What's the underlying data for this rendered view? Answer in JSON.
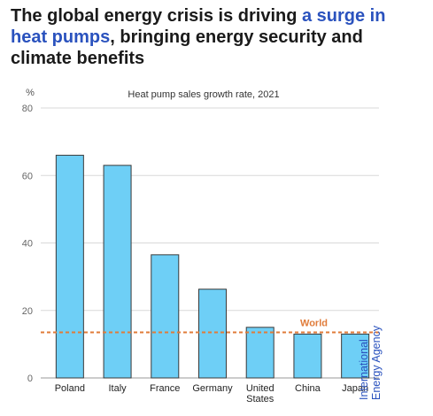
{
  "headline": {
    "part1": "The global energy crisis is driving ",
    "highlight": "a surge in heat pumps",
    "part2": ", bringing energy security and climate benefits"
  },
  "logo": {
    "line1": "International",
    "line2": "Energy Agency",
    "color": "#2a52be"
  },
  "chart_data": {
    "type": "bar",
    "title": "Heat pump sales growth rate, 2021",
    "ylabel": "%",
    "ylim": [
      0,
      80
    ],
    "yticks": [
      0,
      20,
      40,
      60,
      80
    ],
    "categories": [
      "Poland",
      "Italy",
      "France",
      "Germany",
      "United States",
      "China",
      "Japan"
    ],
    "values": [
      66,
      63,
      36.5,
      26.3,
      15,
      13,
      13
    ],
    "reference_line": {
      "label": "World",
      "value": 13.5,
      "color": "#e07b39"
    },
    "bar_color": "#6ecff6",
    "grid": "horizontal",
    "legend": "none"
  }
}
